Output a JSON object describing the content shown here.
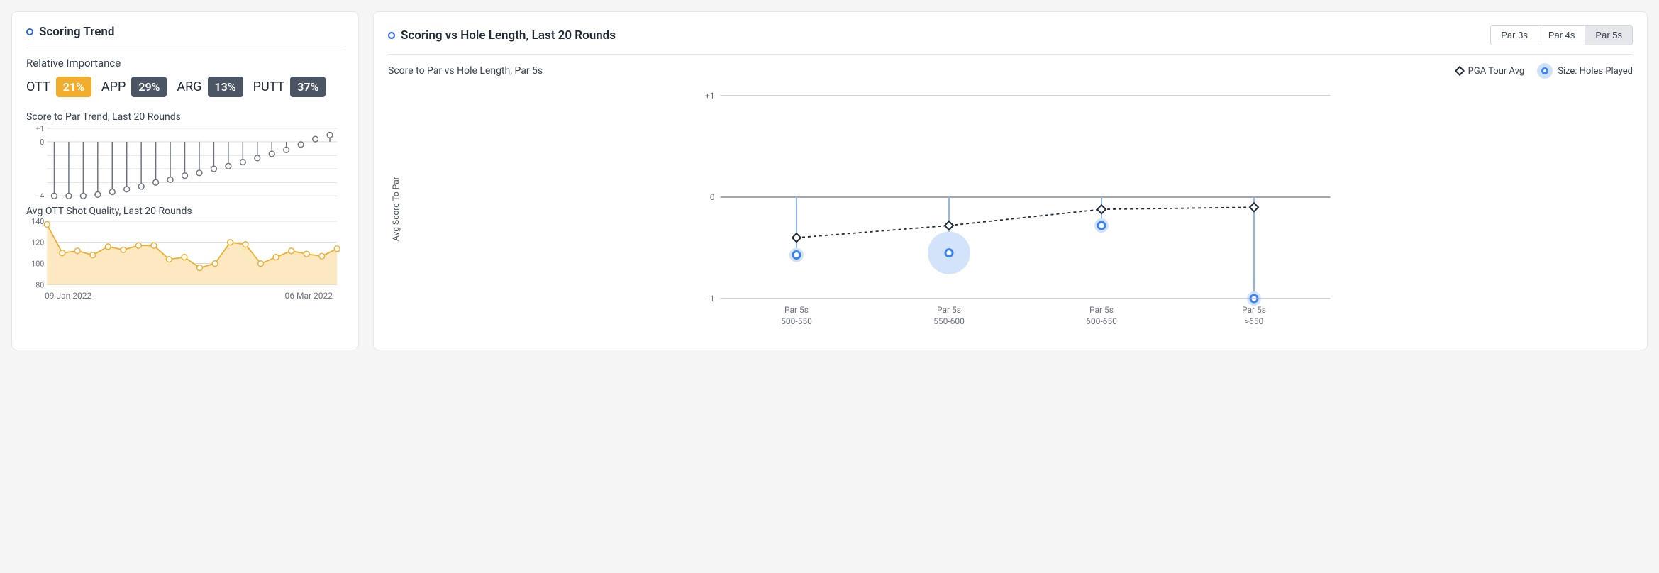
{
  "left_card": {
    "title": "Scoring Trend",
    "importance_label": "Relative Importance",
    "importance": [
      {
        "label": "OTT",
        "value": "21%",
        "bg": "#f0ad2e"
      },
      {
        "label": "APP",
        "value": "29%",
        "bg": "#4b5563"
      },
      {
        "label": "ARG",
        "value": "13%",
        "bg": "#4b5563"
      },
      {
        "label": "PUTT",
        "value": "37%",
        "bg": "#4b5563"
      }
    ],
    "score_trend": {
      "title": "Score to Par Trend, Last 20 Rounds",
      "ylim": [
        -4,
        1
      ],
      "yticks": [
        1,
        0,
        -4
      ],
      "ytick_labels": [
        "+1",
        "0",
        "-4"
      ],
      "grid_color": "#d1d5db",
      "line_color": "#6b7280",
      "marker_stroke": "#6b7280",
      "marker_fill": "#ffffff",
      "marker_r": 4,
      "values": [
        -4.0,
        -4.0,
        -4.0,
        -3.9,
        -3.7,
        -3.5,
        -3.3,
        -3.0,
        -2.8,
        -2.5,
        -2.3,
        -2.0,
        -1.8,
        -1.5,
        -1.2,
        -0.9,
        -0.6,
        -0.2,
        0.2,
        0.5
      ]
    },
    "ott_quality": {
      "title": "Avg OTT Shot Quality, Last 20 Rounds",
      "ylim": [
        80,
        140
      ],
      "yticks": [
        140,
        120,
        100,
        80
      ],
      "grid_color": "#d1d5db",
      "line_color": "#f0ad2e",
      "fill_color": "#fce9c1",
      "marker_stroke": "#f0ad2e",
      "marker_fill": "#ffffff",
      "marker_r": 4,
      "values": [
        137,
        110,
        112,
        108,
        116,
        113,
        117,
        117,
        104,
        106,
        96,
        100,
        120,
        118,
        100,
        106,
        112,
        109,
        107,
        114
      ]
    },
    "date_start": "09 Jan 2022",
    "date_end": "06 Mar 2022"
  },
  "right_card": {
    "title": "Scoring vs Hole Length, Last 20 Rounds",
    "tabs": [
      {
        "label": "Par 3s",
        "active": false
      },
      {
        "label": "Par 4s",
        "active": false
      },
      {
        "label": "Par 5s",
        "active": true
      }
    ],
    "sub_title": "Score to Par vs Hole Length, Par 5s",
    "legend_pga": "PGA Tour Avg",
    "legend_size": "Size: Holes Played",
    "y_axis_label": "Avg Score To Par",
    "chart": {
      "ylim": [
        -1,
        1
      ],
      "yticks": [
        1,
        0,
        -1
      ],
      "ytick_labels": [
        "+1",
        "0",
        "-1"
      ],
      "grid_color": "#9ca3af",
      "zero_color": "#6b7280",
      "stem_color": "#8fb8ea",
      "bubble_fill": "#d2e3fa",
      "bubble_stroke": "#3b82f6",
      "pga_color": "#1f2937",
      "pga_dash": "4 4",
      "categories": [
        {
          "top": "Par 5s",
          "bottom": "500-550",
          "player": -0.57,
          "pga": -0.4,
          "size_r": 10
        },
        {
          "top": "Par 5s",
          "bottom": "550-600",
          "player": -0.55,
          "pga": -0.28,
          "size_r": 30
        },
        {
          "top": "Par 5s",
          "bottom": "600-650",
          "player": -0.28,
          "pga": -0.12,
          "size_r": 10
        },
        {
          "top": "Par 5s",
          "bottom": ">650",
          "player": -1.0,
          "pga": -0.1,
          "size_r": 10
        }
      ],
      "label_color": "#6b7280",
      "label_fontsize": 12
    }
  }
}
